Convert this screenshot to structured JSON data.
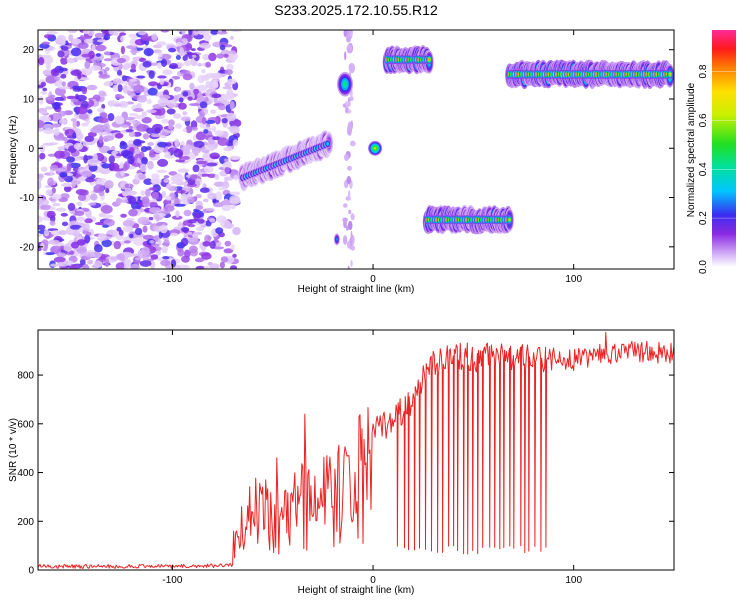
{
  "title": "S233.2025.172.10.55.R12",
  "colors": {
    "snr_line": "#ee2222",
    "axis": "#000000",
    "background": "#ffffff"
  },
  "chart_data": [
    {
      "type": "heatmap",
      "xlabel": "Height of straight line (km)",
      "ylabel": "Frequency (Hz)",
      "xlim": [
        -167,
        150
      ],
      "ylim": [
        -24.5,
        24
      ],
      "xticks": [
        -100,
        0,
        100
      ],
      "yticks": [
        -20,
        -10,
        0,
        10,
        20
      ],
      "colorbar": {
        "label": "Normalized spectral amplitude",
        "ticks": [
          "0.0",
          "0.2",
          "0.4",
          "0.6",
          "0.8"
        ],
        "tick_values": [
          0.0,
          0.2,
          0.4,
          0.6,
          0.8
        ],
        "range": [
          0,
          0.97
        ],
        "colormap": "white-violet-blue-cyan-green-yellow-orange-red-magenta"
      },
      "noise_region_x": [
        -167,
        -68
      ],
      "features": [
        {
          "name": "rising-track",
          "x0": -65,
          "x1": -22,
          "f0": -6,
          "f1": 1,
          "peak": 0.45
        },
        {
          "name": "blob-a",
          "x": -18,
          "f": -18.5,
          "w": 3,
          "h": 2.5,
          "peak": 0.3
        },
        {
          "name": "blob-b",
          "x": -14,
          "f": 13,
          "w": 8,
          "h": 5,
          "peak": 0.45
        },
        {
          "name": "blob-c",
          "x": 1,
          "f": 0,
          "w": 7,
          "h": 3,
          "peak": 0.65
        },
        {
          "name": "track-upper",
          "x0": 7,
          "x1": 28,
          "f": 18,
          "peak": 0.9
        },
        {
          "name": "track-lower",
          "x0": 27,
          "x1": 68,
          "f": -14.5,
          "peak": 0.9
        },
        {
          "name": "track-right",
          "x0": 68,
          "x1": 148,
          "f": 15,
          "peak": 0.97
        }
      ]
    },
    {
      "type": "line",
      "xlabel": "Height of straight line (km)",
      "ylabel": "SNR (10 * v/v)",
      "xlim": [
        -167,
        150
      ],
      "ylim": [
        0,
        985
      ],
      "xticks": [
        -100,
        0,
        100
      ],
      "yticks": [
        0,
        200,
        400,
        600,
        800
      ],
      "segments": [
        {
          "x": [
            -167,
            -90,
            -75,
            -70
          ],
          "y": [
            15,
            15,
            18,
            20
          ],
          "noise": 8
        },
        {
          "x": [
            -70,
            -60,
            -50,
            -40,
            -30,
            -20,
            -10,
            0
          ],
          "y": [
            50,
            300,
            200,
            280,
            330,
            380,
            480,
            560
          ],
          "noise": 140
        },
        {
          "x": [
            0,
            10,
            20,
            25,
            30,
            40,
            50,
            60,
            70,
            80,
            90
          ],
          "y": [
            560,
            620,
            700,
            780,
            840,
            880,
            870,
            880,
            870,
            880,
            860
          ],
          "noise": 60
        },
        {
          "x": [
            90,
            100,
            110,
            120,
            130,
            140,
            150
          ],
          "y": [
            870,
            860,
            880,
            890,
            900,
            895,
            890
          ],
          "noise": 45
        }
      ],
      "dropouts": {
        "x_range": [
          12,
          88
        ],
        "spacing": 2.6,
        "min_y": 60
      },
      "spikes": [
        {
          "x": -48,
          "y": 460
        },
        {
          "x": -34,
          "y": 640
        },
        {
          "x": 116,
          "y": 975
        }
      ]
    }
  ]
}
